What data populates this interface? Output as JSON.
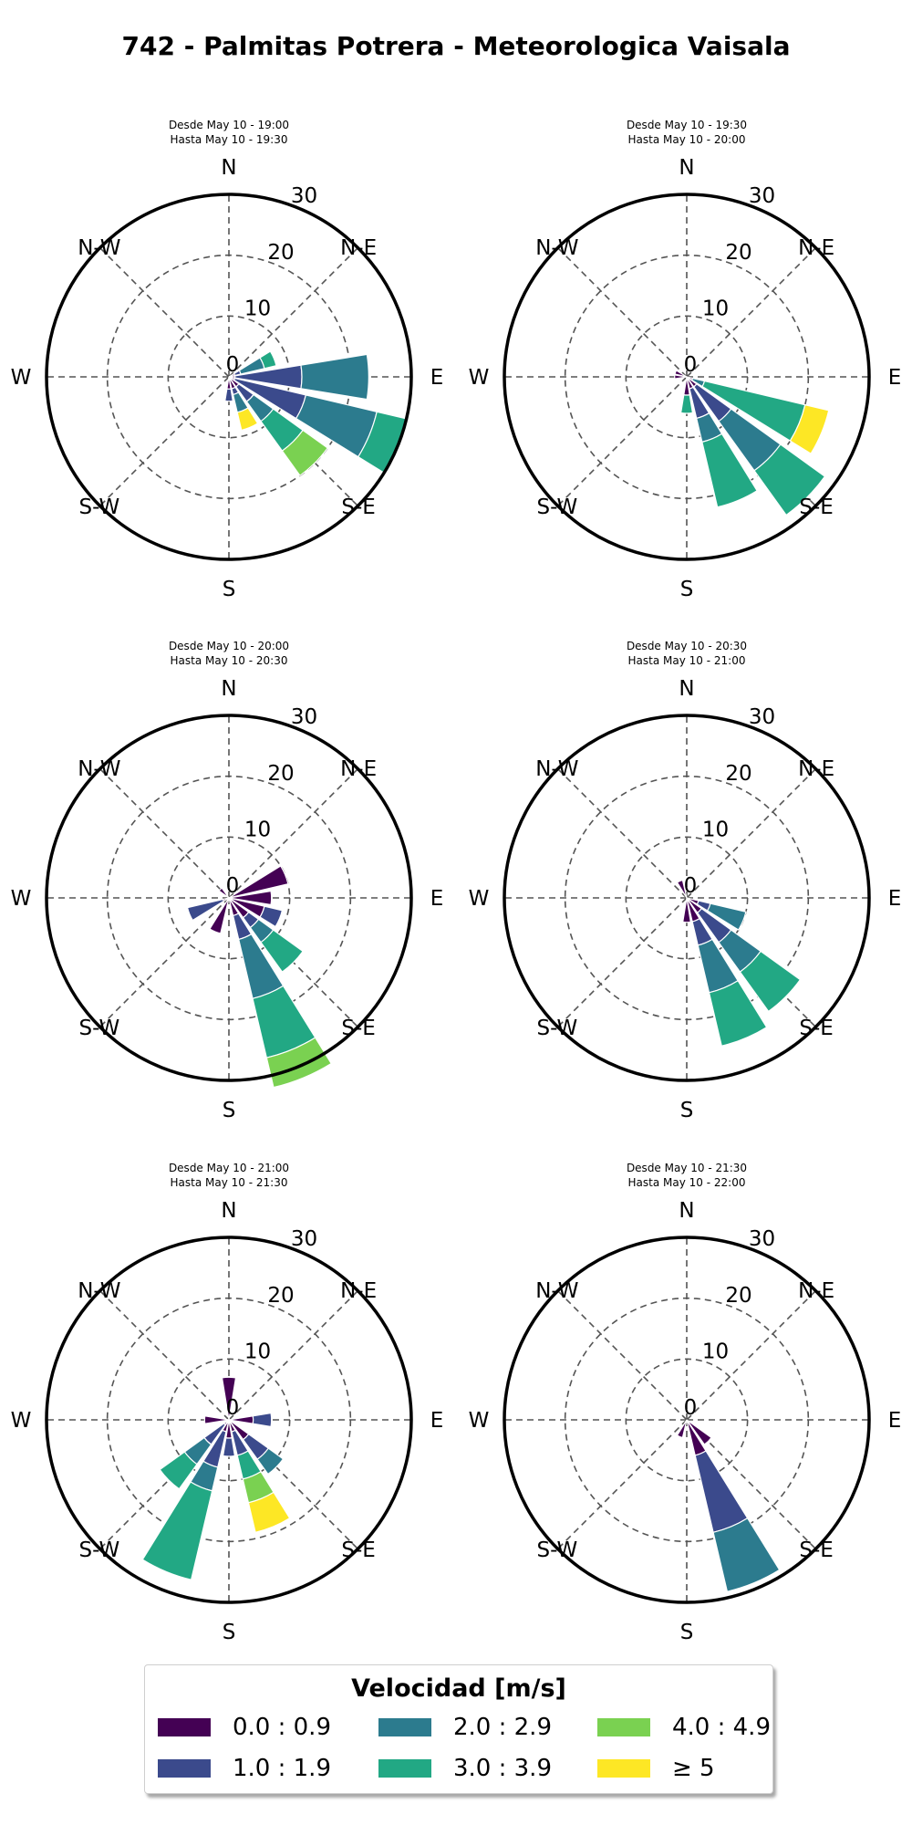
{
  "title": "742 - Palmitas Potrera - Meteorologica Vaisala",
  "directions": [
    "N",
    "N-E",
    "E",
    "S-E",
    "S",
    "S-W",
    "W",
    "N-W"
  ],
  "legend": {
    "title": "Velocidad [m/s]",
    "items": [
      {
        "label": "0.0 : 0.9",
        "color": "#440154"
      },
      {
        "label": "1.0 : 1.9",
        "color": "#3b4a8c"
      },
      {
        "label": "2.0 : 2.9",
        "color": "#2c7b8e"
      },
      {
        "label": "3.0 : 3.9",
        "color": "#22a884"
      },
      {
        "label": "4.0 : 4.9",
        "color": "#7ad151"
      },
      {
        "label": "≥ 5",
        "color": "#fde725"
      }
    ]
  },
  "chart_data": [
    {
      "type": "windrose",
      "subtitle_from": "Desde May 10 - 19:00",
      "subtitle_to": "Hasta May 10 - 19:30",
      "rticks": [
        0,
        10,
        20,
        30
      ],
      "rmax": 30,
      "sectors": [
        {
          "dir": 67.5,
          "values": [
            1,
            1,
            4,
            2,
            0,
            0
          ]
        },
        {
          "dir": 90,
          "values": [
            1,
            11,
            11,
            0,
            0,
            0
          ]
        },
        {
          "dir": 112.5,
          "values": [
            1,
            12,
            12,
            5,
            0,
            0
          ]
        },
        {
          "dir": 135,
          "values": [
            2,
            3,
            4,
            6,
            5,
            0
          ]
        },
        {
          "dir": 157.5,
          "values": [
            2,
            1,
            3,
            0,
            0,
            3
          ]
        },
        {
          "dir": 180,
          "values": [
            2,
            2,
            0,
            0,
            0,
            0
          ]
        }
      ]
    },
    {
      "type": "windrose",
      "subtitle_from": "Desde May 10 - 19:30",
      "subtitle_to": "Hasta May 10 - 20:00",
      "rticks": [
        0,
        10,
        20,
        30
      ],
      "rmax": 30,
      "sectors": [
        {
          "dir": 270,
          "values": [
            2,
            0,
            0,
            0,
            0,
            0
          ]
        },
        {
          "dir": 292.5,
          "values": [
            2,
            0,
            0,
            0,
            0,
            0
          ]
        },
        {
          "dir": 112.5,
          "values": [
            1,
            0,
            2,
            17,
            0,
            4
          ]
        },
        {
          "dir": 135,
          "values": [
            2,
            7,
            10,
            9,
            0,
            0
          ]
        },
        {
          "dir": 157.5,
          "values": [
            2,
            5,
            4,
            11,
            0,
            0
          ]
        },
        {
          "dir": 180,
          "values": [
            3,
            0,
            0,
            3,
            0,
            0
          ]
        }
      ]
    },
    {
      "type": "windrose",
      "subtitle_from": "Desde May 10 - 20:00",
      "subtitle_to": "Hasta May 10 - 20:30",
      "rticks": [
        0,
        10,
        20,
        30
      ],
      "rmax": 30,
      "sectors": [
        {
          "dir": 67.5,
          "values": [
            10,
            0,
            0,
            0,
            0,
            0
          ]
        },
        {
          "dir": 90,
          "values": [
            7,
            0,
            0,
            0,
            0,
            0
          ]
        },
        {
          "dir": 112.5,
          "values": [
            6,
            3,
            0,
            0,
            0,
            0
          ]
        },
        {
          "dir": 135,
          "values": [
            4,
            2,
            3,
            6,
            0,
            0
          ]
        },
        {
          "dir": 157.5,
          "values": [
            3,
            4,
            10,
            10,
            5,
            0
          ]
        },
        {
          "dir": 202.5,
          "values": [
            6,
            0,
            0,
            0,
            0,
            0
          ]
        },
        {
          "dir": 247.5,
          "values": [
            1,
            6,
            0,
            0,
            0,
            0
          ]
        },
        {
          "dir": 315,
          "values": [
            2,
            0,
            0,
            0,
            0,
            0
          ]
        }
      ]
    },
    {
      "type": "windrose",
      "subtitle_from": "Desde May 10 - 20:30",
      "subtitle_to": "Hasta May 10 - 21:00",
      "rticks": [
        0,
        10,
        20,
        30
      ],
      "rmax": 30,
      "sectors": [
        {
          "dir": 112.5,
          "values": [
            2,
            2,
            6,
            0,
            0,
            0
          ]
        },
        {
          "dir": 135,
          "values": [
            3,
            6,
            6,
            8,
            0,
            0
          ]
        },
        {
          "dir": 157.5,
          "values": [
            4,
            4,
            8,
            9,
            0,
            0
          ]
        },
        {
          "dir": 180,
          "values": [
            4,
            0,
            0,
            0,
            0,
            0
          ]
        },
        {
          "dir": 337.5,
          "values": [
            3,
            0,
            0,
            0,
            0,
            0
          ]
        }
      ]
    },
    {
      "type": "windrose",
      "subtitle_from": "Desde May 10 - 21:00",
      "subtitle_to": "Hasta May 10 - 21:30",
      "rticks": [
        0,
        10,
        20,
        30
      ],
      "rmax": 30,
      "sectors": [
        {
          "dir": 0,
          "values": [
            7,
            0,
            0,
            0,
            0,
            0
          ]
        },
        {
          "dir": 90,
          "values": [
            4,
            3,
            0,
            0,
            0,
            0
          ]
        },
        {
          "dir": 135,
          "values": [
            4,
            4,
            3,
            0,
            0,
            0
          ]
        },
        {
          "dir": 157.5,
          "values": [
            2,
            4,
            0,
            4,
            4,
            5
          ]
        },
        {
          "dir": 180,
          "values": [
            3,
            3,
            0,
            0,
            0,
            0
          ]
        },
        {
          "dir": 202.5,
          "values": [
            2,
            6,
            4,
            15,
            0,
            0
          ]
        },
        {
          "dir": 225,
          "values": [
            1,
            4,
            4,
            5,
            0,
            0
          ]
        },
        {
          "dir": 270,
          "values": [
            4,
            0,
            0,
            0,
            0,
            0
          ]
        }
      ]
    },
    {
      "type": "windrose",
      "subtitle_from": "Desde May 10 - 21:30",
      "subtitle_to": "Hasta May 10 - 22:00",
      "rticks": [
        0,
        10,
        20,
        30
      ],
      "rmax": 30,
      "sectors": [
        {
          "dir": 135,
          "values": [
            5,
            0,
            0,
            0,
            0,
            0
          ]
        },
        {
          "dir": 157.5,
          "values": [
            6,
            13,
            10,
            0,
            0,
            0
          ]
        },
        {
          "dir": 202.5,
          "values": [
            3,
            0,
            0,
            0,
            0,
            0
          ]
        }
      ]
    }
  ]
}
